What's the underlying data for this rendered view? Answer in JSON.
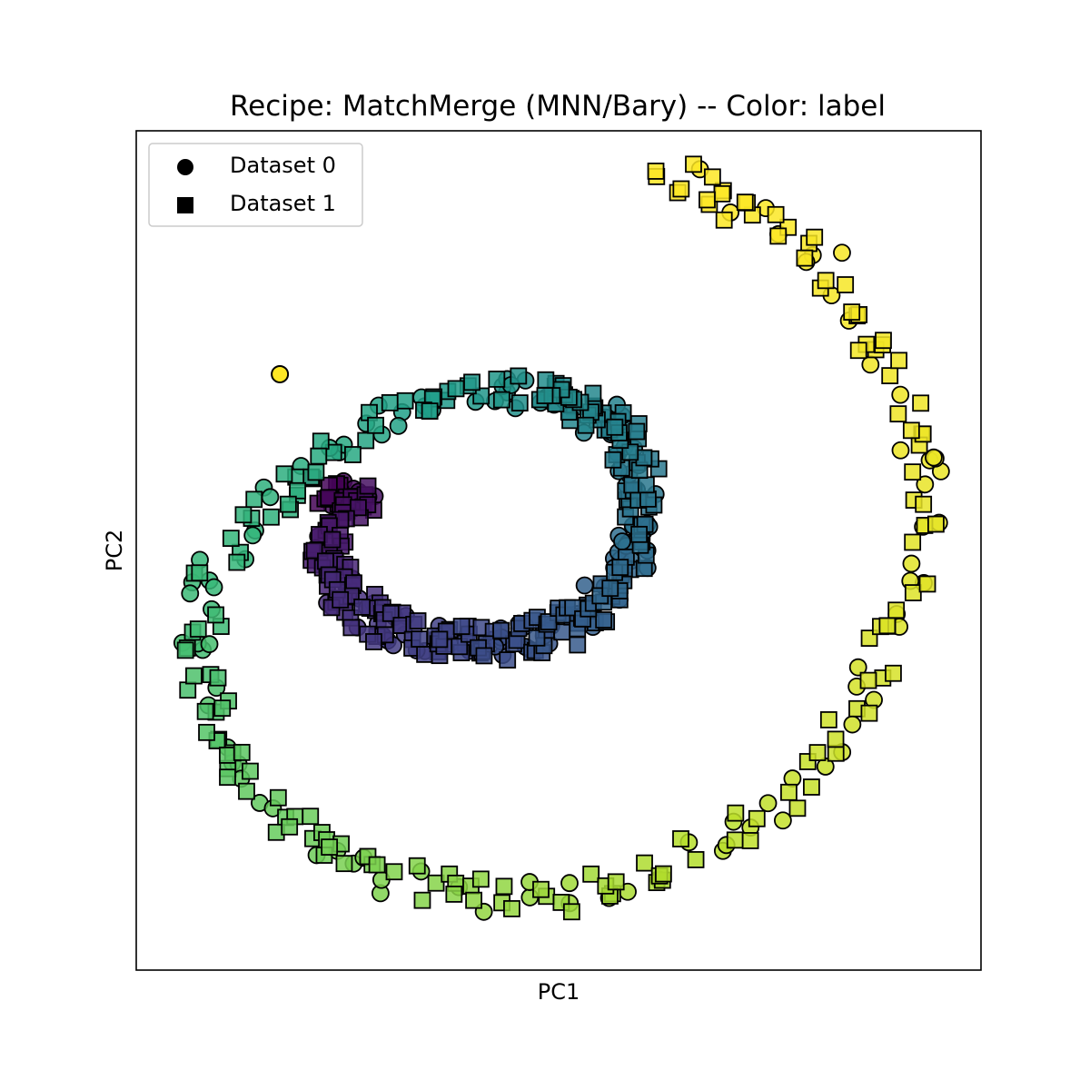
{
  "chart_data": {
    "type": "scatter",
    "title": "Recipe: MatchMerge (MNN/Bary) -- Color: label",
    "xlabel": "PC1",
    "ylabel": "PC2",
    "xlim": [
      -1,
      1
    ],
    "ylim": [
      -1,
      1
    ],
    "xticks": "none",
    "yticks": "none",
    "grid": false,
    "legend_position": "top-left",
    "colormap": "viridis",
    "color_by": "label",
    "marker_edge_color": "#000000",
    "legend": [
      {
        "name": "Dataset 0",
        "marker": "circle"
      },
      {
        "name": "Dataset 1",
        "marker": "square"
      }
    ],
    "structure": "two datasets overlaid along one spiral; color encodes label from 0 (inner end) to 1 (outer end)",
    "spiral_points": [
      {
        "x": -0.56,
        "y": 0.14,
        "label": 0.0
      },
      {
        "x": -0.47,
        "y": 0.12,
        "label": 0.04
      },
      {
        "x": -0.56,
        "y": 0.0,
        "label": 0.08
      },
      {
        "x": -0.52,
        "y": -0.1,
        "label": 0.12
      },
      {
        "x": -0.42,
        "y": -0.17,
        "label": 0.16
      },
      {
        "x": -0.28,
        "y": -0.22,
        "label": 0.2
      },
      {
        "x": -0.14,
        "y": -0.22,
        "label": 0.24
      },
      {
        "x": 0.0,
        "y": -0.19,
        "label": 0.28
      },
      {
        "x": 0.12,
        "y": -0.1,
        "label": 0.32
      },
      {
        "x": 0.19,
        "y": 0.02,
        "label": 0.36
      },
      {
        "x": 0.2,
        "y": 0.17,
        "label": 0.4
      },
      {
        "x": 0.13,
        "y": 0.3,
        "label": 0.44
      },
      {
        "x": 0.0,
        "y": 0.37,
        "label": 0.48
      },
      {
        "x": -0.16,
        "y": 0.38,
        "label": 0.52
      },
      {
        "x": -0.33,
        "y": 0.34,
        "label": 0.56
      },
      {
        "x": -0.51,
        "y": 0.26,
        "label": 0.6
      },
      {
        "x": -0.68,
        "y": 0.13,
        "label": 0.64
      },
      {
        "x": -0.82,
        "y": -0.06,
        "label": 0.67
      },
      {
        "x": -0.86,
        "y": -0.25,
        "label": 0.7
      },
      {
        "x": -0.8,
        "y": -0.45,
        "label": 0.73
      },
      {
        "x": -0.68,
        "y": -0.62,
        "label": 0.76
      },
      {
        "x": -0.5,
        "y": -0.75,
        "label": 0.79
      },
      {
        "x": -0.27,
        "y": -0.81,
        "label": 0.82
      },
      {
        "x": 0.0,
        "y": -0.83,
        "label": 0.85
      },
      {
        "x": 0.25,
        "y": -0.76,
        "label": 0.88
      },
      {
        "x": 0.5,
        "y": -0.62,
        "label": 0.91
      },
      {
        "x": 0.7,
        "y": -0.4,
        "label": 0.93
      },
      {
        "x": 0.83,
        "y": -0.12,
        "label": 0.95
      },
      {
        "x": 0.87,
        "y": 0.16,
        "label": 0.97
      },
      {
        "x": 0.8,
        "y": 0.42,
        "label": 0.98
      },
      {
        "x": 0.65,
        "y": 0.66,
        "label": 0.99
      },
      {
        "x": 0.43,
        "y": 0.82,
        "label": 1.0
      },
      {
        "x": 0.23,
        "y": 0.91,
        "label": 1.0
      }
    ],
    "outliers": [
      {
        "x": -0.66,
        "y": 0.42,
        "label": 1.0,
        "dataset": "Dataset 0"
      }
    ]
  }
}
